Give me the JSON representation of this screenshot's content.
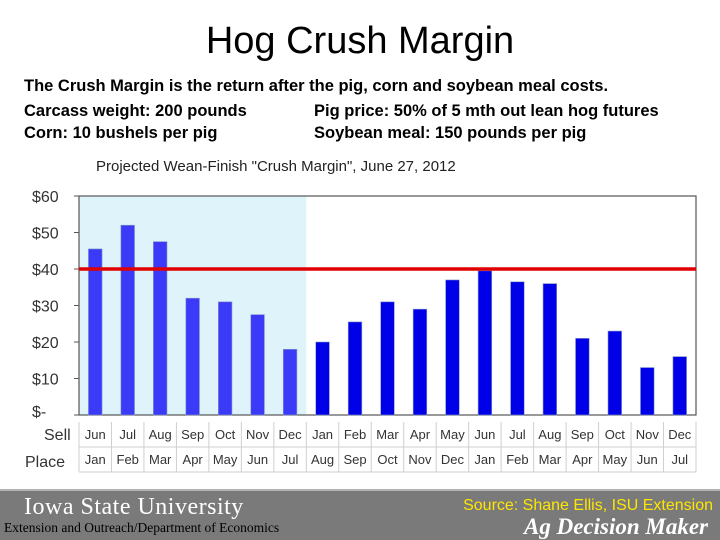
{
  "slide": {
    "title": "Hog Crush Margin",
    "description": "The Crush Margin is the return after the pig, corn and soybean meal costs.",
    "carcass_weight": "Carcass weight:  200 pounds",
    "pig_price": "Pig price:  50% of 5 mth out lean hog futures",
    "corn": "Corn:  10 bushels per pig",
    "soybean_meal": "Soybean meal:  150 pounds per pig"
  },
  "footer": {
    "university": "Iowa State University",
    "department": "Extension and Outreach/Department of Economics",
    "source": "Source: Shane Ellis, ISU Extension",
    "brand": "Ag Decision Maker"
  },
  "colors": {
    "bar_historical": "#3a3af8",
    "bar_projected": "#0000e8",
    "shade": "#def4fa",
    "reference_line": "#e00000"
  },
  "chart_data": {
    "type": "bar",
    "title": "Projected Wean-Finish \"Crush Margin\", June 27, 2012",
    "row_labels": [
      "Sell",
      "Place"
    ],
    "sell_months": [
      "Jun",
      "Jul",
      "Aug",
      "Sep",
      "Oct",
      "Nov",
      "Dec",
      "Jan",
      "Feb",
      "Mar",
      "Apr",
      "May",
      "Jun",
      "Jul",
      "Aug",
      "Sep",
      "Oct",
      "Nov",
      "Dec"
    ],
    "place_months": [
      "Jan",
      "Feb",
      "Mar",
      "Apr",
      "May",
      "Jun",
      "Jul",
      "Aug",
      "Sep",
      "Oct",
      "Nov",
      "Dec",
      "Jan",
      "Feb",
      "Mar",
      "Apr",
      "May",
      "Jun",
      "Jul"
    ],
    "values": [
      45.5,
      52,
      47.5,
      32,
      31,
      27.5,
      18,
      20,
      25.5,
      31,
      29,
      37,
      39.5,
      36.5,
      36,
      21,
      23,
      13,
      16
    ],
    "shaded_count": 7,
    "ylim": [
      0,
      60
    ],
    "yticks": [
      0,
      10,
      20,
      30,
      40,
      50,
      60
    ],
    "ytick_labels": [
      "$-",
      "$10",
      "$20",
      "$30",
      "$40",
      "$50",
      "$60"
    ],
    "reference_value": 40,
    "grid": false
  }
}
